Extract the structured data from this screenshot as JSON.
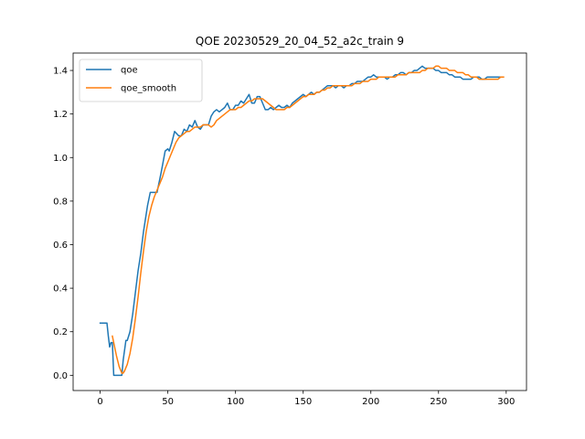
{
  "chart_data": {
    "type": "line",
    "title": "QOE 20230529_20_04_52_a2c_train 9",
    "xlabel": "",
    "ylabel": "",
    "xlim": [
      -20,
      315
    ],
    "ylim": [
      -0.07,
      1.48
    ],
    "xticks": [
      0,
      50,
      100,
      150,
      200,
      250,
      300
    ],
    "yticks": [
      0.0,
      0.2,
      0.4,
      0.6,
      0.8,
      1.0,
      1.2,
      1.4
    ],
    "xtick_labels": [
      "0",
      "50",
      "100",
      "150",
      "200",
      "250",
      "300"
    ],
    "ytick_labels": [
      "0.0",
      "0.2",
      "0.4",
      "0.6",
      "0.8",
      "1.0",
      "1.2",
      "1.4"
    ],
    "grid": false,
    "legend_position": "upper-left",
    "series": [
      {
        "name": "qoe",
        "color": "#1f77b4",
        "points": [
          [
            0,
            0.24
          ],
          [
            3,
            0.24
          ],
          [
            5,
            0.24
          ],
          [
            6,
            0.18
          ],
          [
            7,
            0.13
          ],
          [
            8,
            0.15
          ],
          [
            9,
            0.15
          ],
          [
            10,
            0.0
          ],
          [
            12,
            0.0
          ],
          [
            14,
            0.0
          ],
          [
            16,
            0.0
          ],
          [
            17,
            0.07
          ],
          [
            19,
            0.16
          ],
          [
            20,
            0.16
          ],
          [
            22,
            0.2
          ],
          [
            24,
            0.28
          ],
          [
            26,
            0.38
          ],
          [
            28,
            0.48
          ],
          [
            30,
            0.56
          ],
          [
            32,
            0.66
          ],
          [
            35,
            0.78
          ],
          [
            37,
            0.84
          ],
          [
            40,
            0.84
          ],
          [
            42,
            0.84
          ],
          [
            45,
            0.93
          ],
          [
            48,
            1.03
          ],
          [
            50,
            1.04
          ],
          [
            51,
            1.03
          ],
          [
            53,
            1.07
          ],
          [
            55,
            1.12
          ],
          [
            58,
            1.1
          ],
          [
            60,
            1.1
          ],
          [
            62,
            1.13
          ],
          [
            64,
            1.12
          ],
          [
            66,
            1.15
          ],
          [
            68,
            1.14
          ],
          [
            70,
            1.17
          ],
          [
            72,
            1.14
          ],
          [
            74,
            1.13
          ],
          [
            76,
            1.15
          ],
          [
            78,
            1.15
          ],
          [
            80,
            1.15
          ],
          [
            82,
            1.19
          ],
          [
            84,
            1.21
          ],
          [
            86,
            1.22
          ],
          [
            88,
            1.21
          ],
          [
            90,
            1.22
          ],
          [
            92,
            1.23
          ],
          [
            94,
            1.25
          ],
          [
            96,
            1.22
          ],
          [
            98,
            1.22
          ],
          [
            100,
            1.24
          ],
          [
            102,
            1.24
          ],
          [
            104,
            1.26
          ],
          [
            106,
            1.25
          ],
          [
            108,
            1.27
          ],
          [
            110,
            1.29
          ],
          [
            112,
            1.25
          ],
          [
            114,
            1.25
          ],
          [
            116,
            1.28
          ],
          [
            118,
            1.28
          ],
          [
            120,
            1.25
          ],
          [
            122,
            1.22
          ],
          [
            124,
            1.22
          ],
          [
            126,
            1.23
          ],
          [
            128,
            1.22
          ],
          [
            130,
            1.23
          ],
          [
            132,
            1.24
          ],
          [
            134,
            1.23
          ],
          [
            136,
            1.23
          ],
          [
            138,
            1.24
          ],
          [
            140,
            1.23
          ],
          [
            142,
            1.25
          ],
          [
            144,
            1.26
          ],
          [
            146,
            1.27
          ],
          [
            148,
            1.28
          ],
          [
            150,
            1.29
          ],
          [
            152,
            1.28
          ],
          [
            154,
            1.29
          ],
          [
            156,
            1.3
          ],
          [
            158,
            1.29
          ],
          [
            160,
            1.3
          ],
          [
            162,
            1.3
          ],
          [
            164,
            1.31
          ],
          [
            166,
            1.32
          ],
          [
            168,
            1.33
          ],
          [
            170,
            1.33
          ],
          [
            172,
            1.33
          ],
          [
            174,
            1.32
          ],
          [
            176,
            1.33
          ],
          [
            178,
            1.33
          ],
          [
            180,
            1.32
          ],
          [
            182,
            1.33
          ],
          [
            184,
            1.33
          ],
          [
            186,
            1.34
          ],
          [
            188,
            1.34
          ],
          [
            190,
            1.35
          ],
          [
            192,
            1.35
          ],
          [
            194,
            1.35
          ],
          [
            196,
            1.36
          ],
          [
            198,
            1.37
          ],
          [
            200,
            1.37
          ],
          [
            202,
            1.38
          ],
          [
            204,
            1.37
          ],
          [
            206,
            1.37
          ],
          [
            208,
            1.37
          ],
          [
            210,
            1.37
          ],
          [
            212,
            1.36
          ],
          [
            214,
            1.37
          ],
          [
            216,
            1.37
          ],
          [
            218,
            1.38
          ],
          [
            220,
            1.38
          ],
          [
            222,
            1.39
          ],
          [
            224,
            1.39
          ],
          [
            226,
            1.38
          ],
          [
            228,
            1.39
          ],
          [
            230,
            1.39
          ],
          [
            232,
            1.4
          ],
          [
            234,
            1.4
          ],
          [
            236,
            1.41
          ],
          [
            238,
            1.42
          ],
          [
            240,
            1.41
          ],
          [
            242,
            1.41
          ],
          [
            244,
            1.41
          ],
          [
            246,
            1.41
          ],
          [
            248,
            1.4
          ],
          [
            250,
            1.4
          ],
          [
            252,
            1.39
          ],
          [
            254,
            1.39
          ],
          [
            256,
            1.39
          ],
          [
            258,
            1.38
          ],
          [
            260,
            1.38
          ],
          [
            262,
            1.37
          ],
          [
            264,
            1.37
          ],
          [
            266,
            1.37
          ],
          [
            268,
            1.36
          ],
          [
            270,
            1.36
          ],
          [
            272,
            1.36
          ],
          [
            274,
            1.36
          ],
          [
            276,
            1.37
          ],
          [
            278,
            1.37
          ],
          [
            280,
            1.37
          ],
          [
            282,
            1.36
          ],
          [
            284,
            1.36
          ],
          [
            286,
            1.37
          ],
          [
            288,
            1.37
          ],
          [
            290,
            1.37
          ],
          [
            292,
            1.37
          ],
          [
            294,
            1.37
          ],
          [
            296,
            1.37
          ],
          [
            298,
            1.37
          ]
        ]
      },
      {
        "name": "qoe_smooth",
        "color": "#ff7f0e",
        "points": [
          [
            9,
            0.18
          ],
          [
            10,
            0.15
          ],
          [
            12,
            0.09
          ],
          [
            14,
            0.04
          ],
          [
            16,
            0.01
          ],
          [
            17,
            0.01
          ],
          [
            18,
            0.02
          ],
          [
            20,
            0.05
          ],
          [
            22,
            0.1
          ],
          [
            24,
            0.17
          ],
          [
            26,
            0.26
          ],
          [
            28,
            0.36
          ],
          [
            30,
            0.47
          ],
          [
            32,
            0.57
          ],
          [
            34,
            0.66
          ],
          [
            36,
            0.73
          ],
          [
            38,
            0.78
          ],
          [
            40,
            0.82
          ],
          [
            42,
            0.85
          ],
          [
            44,
            0.88
          ],
          [
            46,
            0.91
          ],
          [
            48,
            0.95
          ],
          [
            50,
            0.98
          ],
          [
            52,
            1.01
          ],
          [
            54,
            1.04
          ],
          [
            56,
            1.07
          ],
          [
            58,
            1.09
          ],
          [
            60,
            1.1
          ],
          [
            62,
            1.11
          ],
          [
            64,
            1.12
          ],
          [
            66,
            1.12
          ],
          [
            68,
            1.13
          ],
          [
            70,
            1.14
          ],
          [
            72,
            1.14
          ],
          [
            74,
            1.14
          ],
          [
            76,
            1.15
          ],
          [
            78,
            1.15
          ],
          [
            80,
            1.15
          ],
          [
            82,
            1.14
          ],
          [
            84,
            1.15
          ],
          [
            86,
            1.17
          ],
          [
            88,
            1.18
          ],
          [
            90,
            1.19
          ],
          [
            92,
            1.2
          ],
          [
            94,
            1.21
          ],
          [
            96,
            1.22
          ],
          [
            98,
            1.22
          ],
          [
            100,
            1.22
          ],
          [
            102,
            1.23
          ],
          [
            104,
            1.23
          ],
          [
            106,
            1.24
          ],
          [
            108,
            1.25
          ],
          [
            110,
            1.26
          ],
          [
            112,
            1.26
          ],
          [
            114,
            1.27
          ],
          [
            116,
            1.27
          ],
          [
            118,
            1.27
          ],
          [
            120,
            1.27
          ],
          [
            122,
            1.26
          ],
          [
            124,
            1.25
          ],
          [
            126,
            1.24
          ],
          [
            128,
            1.23
          ],
          [
            130,
            1.22
          ],
          [
            132,
            1.22
          ],
          [
            134,
            1.22
          ],
          [
            136,
            1.22
          ],
          [
            138,
            1.23
          ],
          [
            140,
            1.23
          ],
          [
            142,
            1.24
          ],
          [
            144,
            1.25
          ],
          [
            146,
            1.26
          ],
          [
            148,
            1.27
          ],
          [
            150,
            1.28
          ],
          [
            152,
            1.28
          ],
          [
            154,
            1.29
          ],
          [
            156,
            1.29
          ],
          [
            158,
            1.29
          ],
          [
            160,
            1.3
          ],
          [
            162,
            1.3
          ],
          [
            164,
            1.31
          ],
          [
            166,
            1.31
          ],
          [
            168,
            1.32
          ],
          [
            170,
            1.32
          ],
          [
            172,
            1.33
          ],
          [
            174,
            1.33
          ],
          [
            176,
            1.33
          ],
          [
            178,
            1.33
          ],
          [
            180,
            1.33
          ],
          [
            182,
            1.33
          ],
          [
            184,
            1.33
          ],
          [
            186,
            1.33
          ],
          [
            188,
            1.34
          ],
          [
            190,
            1.34
          ],
          [
            192,
            1.34
          ],
          [
            194,
            1.35
          ],
          [
            196,
            1.35
          ],
          [
            198,
            1.35
          ],
          [
            200,
            1.36
          ],
          [
            202,
            1.36
          ],
          [
            204,
            1.36
          ],
          [
            206,
            1.37
          ],
          [
            208,
            1.37
          ],
          [
            210,
            1.37
          ],
          [
            212,
            1.37
          ],
          [
            214,
            1.37
          ],
          [
            216,
            1.37
          ],
          [
            218,
            1.37
          ],
          [
            220,
            1.38
          ],
          [
            222,
            1.38
          ],
          [
            224,
            1.38
          ],
          [
            226,
            1.38
          ],
          [
            228,
            1.39
          ],
          [
            230,
            1.39
          ],
          [
            232,
            1.39
          ],
          [
            234,
            1.39
          ],
          [
            236,
            1.39
          ],
          [
            238,
            1.4
          ],
          [
            240,
            1.4
          ],
          [
            242,
            1.41
          ],
          [
            244,
            1.41
          ],
          [
            246,
            1.41
          ],
          [
            248,
            1.42
          ],
          [
            250,
            1.42
          ],
          [
            252,
            1.41
          ],
          [
            254,
            1.41
          ],
          [
            256,
            1.41
          ],
          [
            258,
            1.4
          ],
          [
            260,
            1.4
          ],
          [
            262,
            1.4
          ],
          [
            264,
            1.39
          ],
          [
            266,
            1.39
          ],
          [
            268,
            1.39
          ],
          [
            270,
            1.38
          ],
          [
            272,
            1.38
          ],
          [
            274,
            1.37
          ],
          [
            276,
            1.37
          ],
          [
            278,
            1.37
          ],
          [
            280,
            1.36
          ],
          [
            282,
            1.36
          ],
          [
            284,
            1.36
          ],
          [
            286,
            1.36
          ],
          [
            288,
            1.36
          ],
          [
            290,
            1.36
          ],
          [
            292,
            1.36
          ],
          [
            294,
            1.36
          ],
          [
            296,
            1.37
          ],
          [
            298,
            1.37
          ]
        ]
      }
    ]
  }
}
